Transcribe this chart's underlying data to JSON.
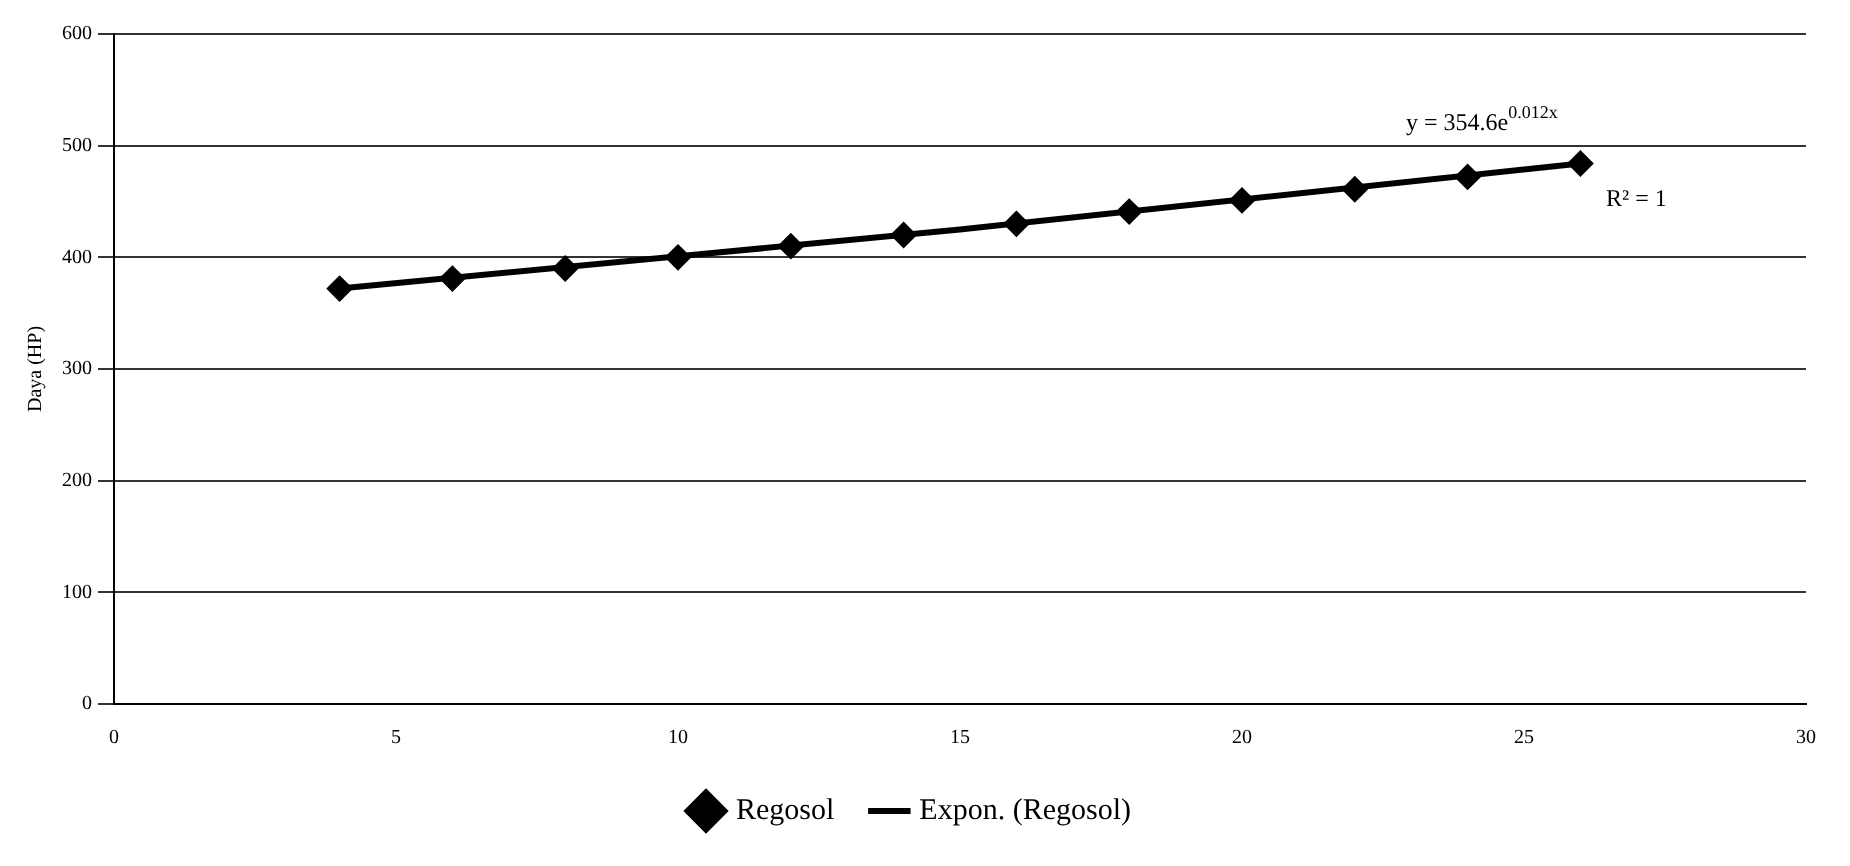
{
  "chart_data": {
    "type": "scatter",
    "ylabel": "Daya (HP)",
    "x": [
      4,
      6,
      8,
      10,
      12,
      14,
      16,
      18,
      20,
      22,
      24,
      26
    ],
    "series": [
      {
        "name": "Regosol",
        "type": "scatter",
        "color": "#000000",
        "marker": "diamond",
        "values": [
          372,
          381,
          390,
          400,
          410,
          420,
          430,
          441,
          451,
          461,
          472,
          484
        ]
      },
      {
        "name": "Expon. (Regosol)",
        "type": "line",
        "color": "#000000",
        "marker": "none",
        "x": [
          4,
          15,
          26
        ],
        "values": [
          372,
          425,
          484
        ]
      }
    ],
    "xlim": [
      0,
      30
    ],
    "xticks": [
      0,
      5,
      10,
      15,
      20,
      25,
      30
    ],
    "ylim": [
      0,
      600
    ],
    "yticks": [
      0,
      100,
      200,
      300,
      400,
      500,
      600
    ],
    "grid": "y",
    "legend": "bottom",
    "annotations": [
      "y = 354.6e$^{0.012x}$",
      "R² = 1"
    ]
  }
}
